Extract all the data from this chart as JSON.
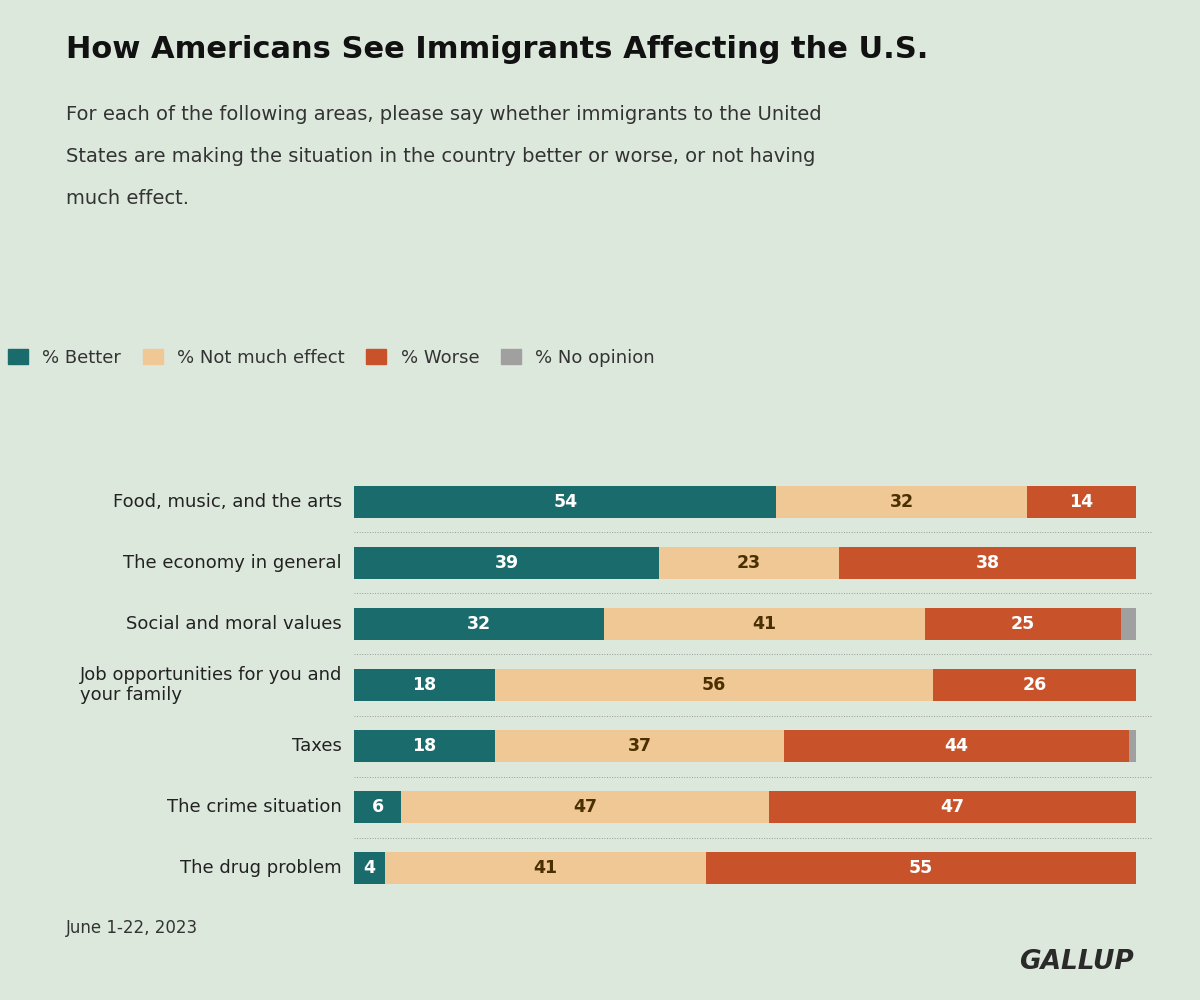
{
  "title": "How Americans See Immigrants Affecting the U.S.",
  "subtitle_lines": [
    "For each of the following areas, please say whether immigrants to the United",
    "States are making the situation in the country better or worse, or not having",
    "much effect."
  ],
  "footnote": "June 1-22, 2023",
  "watermark": "GALLUP",
  "background_color": "#dde8dd",
  "categories": [
    "Food, music, and the arts",
    "The economy in general",
    "Social and moral values",
    "Job opportunities for you and\nyour family",
    "Taxes",
    "The crime situation",
    "The drug problem"
  ],
  "better": [
    54,
    39,
    32,
    18,
    18,
    6,
    4
  ],
  "not_much": [
    32,
    23,
    41,
    56,
    37,
    47,
    41
  ],
  "worse": [
    14,
    38,
    25,
    26,
    44,
    47,
    55
  ],
  "no_opinion": [
    0,
    0,
    2,
    0,
    1,
    0,
    0
  ],
  "color_better": "#1a6b6b",
  "color_not_much": "#f0c896",
  "color_worse": "#c8532a",
  "color_no_opinion": "#a0a0a0",
  "legend_labels": [
    "% Better",
    "% Not much effect",
    "% Worse",
    "% No opinion"
  ],
  "bar_height": 0.52,
  "xlim": [
    0,
    102
  ]
}
